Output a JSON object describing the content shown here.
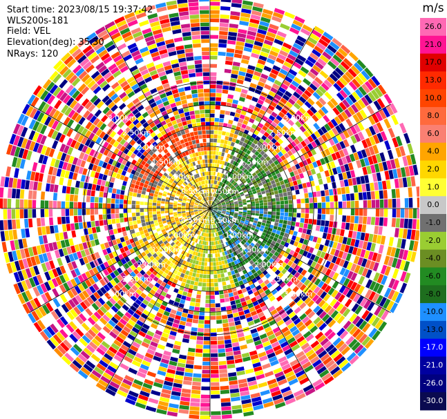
{
  "header": {
    "start_time": "Start time: 2023/08/15 19:37:42",
    "instrument": "WLS200s-181",
    "field": "Field: VEL",
    "elevation": "Elevation(deg): 35.30",
    "nrays": "NRays: 120"
  },
  "chart_data": {
    "type": "heatmap",
    "projection": "polar-ppi",
    "field": "VEL",
    "units": "m/s",
    "nrays": 120,
    "value_range": [
      -30.0,
      30.0
    ],
    "range_rings_km": [
      0.5,
      1.0,
      1.5,
      2.0,
      2.5,
      3.0
    ],
    "ring_labels": [
      "0.50km",
      "1.00km",
      "1.50km",
      "2.00km",
      "2.50km",
      "3.00km"
    ],
    "colorbar": {
      "label": "m/s",
      "ticks": [
        "26.0",
        "21.0",
        "17.0",
        "13.0",
        "10.0",
        "8.0",
        "6.0",
        "4.0",
        "2.0",
        "1.0",
        "0.0",
        "-1.0",
        "-2.0",
        "-4.0",
        "-6.0",
        "-8.0",
        "-10.0",
        "-13.0",
        "-17.0",
        "-21.0",
        "-26.0",
        "-30.0"
      ],
      "colors": [
        "#ff69b4",
        "#ff1493",
        "#e00000",
        "#ff2a00",
        "#ff4500",
        "#ff6a3d",
        "#fa8072",
        "#ffa500",
        "#ffd700",
        "#ffff33",
        "#c8c8c8",
        "#707070",
        "#9acd32",
        "#6b8e23",
        "#228b22",
        "#1e6e1e",
        "#1e90ff",
        "#0050c8",
        "#0000ff",
        "#0000a0",
        "#000080",
        "#0a0a50"
      ]
    }
  }
}
